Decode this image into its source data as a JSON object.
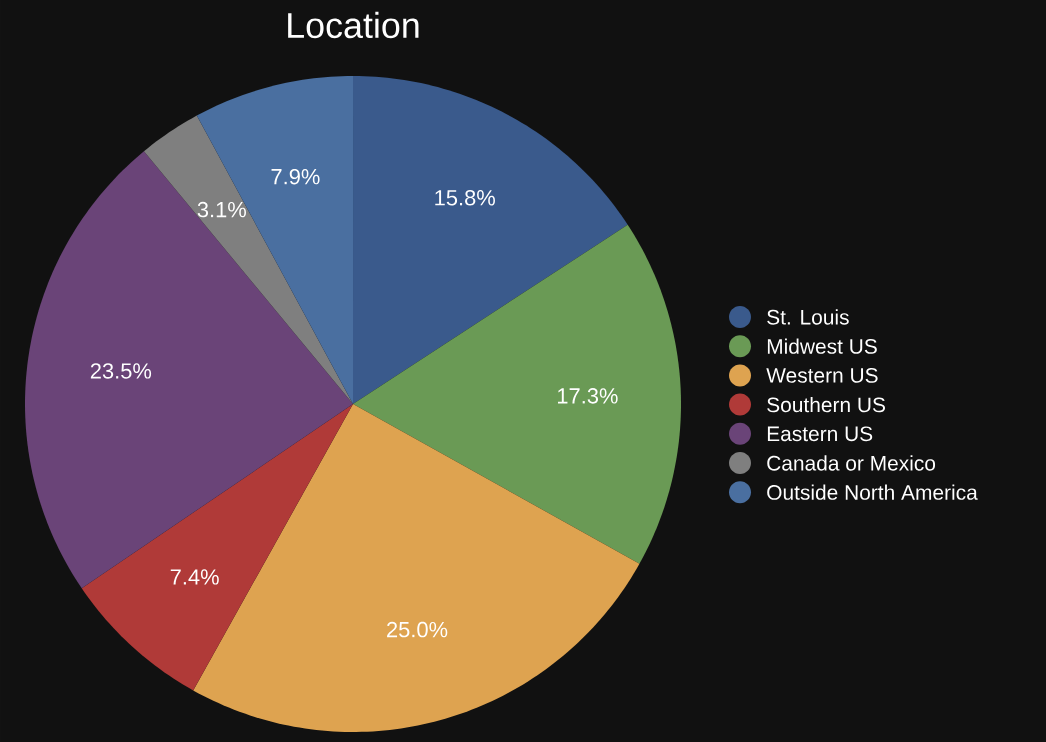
{
  "chart_data": {
    "type": "pie",
    "title": "Location",
    "categories": [
      "St. Louis",
      "Midwest US",
      "Western US",
      "Southern US",
      "Eastern US",
      "Canada or Mexico",
      "Outside North America"
    ],
    "values": [
      15.8,
      17.3,
      25.0,
      7.4,
      23.5,
      3.1,
      7.9
    ],
    "value_labels": [
      "15.8%",
      "17.3%",
      "25.0%",
      "7.4%",
      "23.5%",
      "3.1%",
      "7.9%"
    ],
    "colors": [
      "#3a5a8c",
      "#6a9a55",
      "#dea350",
      "#b03a38",
      "#6a4478",
      "#7f7f7f",
      "#4a6fa0"
    ],
    "legend": "right"
  }
}
